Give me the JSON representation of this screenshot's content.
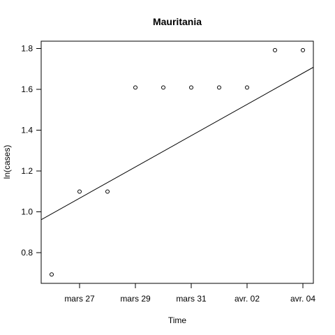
{
  "chart_data": {
    "type": "scatter",
    "title": "Mauritania",
    "xlabel": "Time",
    "ylabel": "ln(cases)",
    "x_ticks": [
      "mars 27",
      "mars 29",
      "mars 31",
      "avr. 02",
      "avr. 04"
    ],
    "x_tick_dates": [
      "2020-03-27",
      "2020-03-29",
      "2020-03-31",
      "2020-04-02",
      "2020-04-04"
    ],
    "y_ticks": [
      0.8,
      1.0,
      1.2,
      1.4,
      1.6,
      1.8
    ],
    "xlim": [
      "2020-03-25",
      "2020-04-04"
    ],
    "ylim": [
      0.65,
      1.84
    ],
    "points": [
      {
        "x": "2020-03-26",
        "y": 0.693
      },
      {
        "x": "2020-03-27",
        "y": 1.099
      },
      {
        "x": "2020-03-28",
        "y": 1.099
      },
      {
        "x": "2020-03-29",
        "y": 1.609
      },
      {
        "x": "2020-03-30",
        "y": 1.609
      },
      {
        "x": "2020-03-31",
        "y": 1.609
      },
      {
        "x": "2020-04-01",
        "y": 1.609
      },
      {
        "x": "2020-04-02",
        "y": 1.609
      },
      {
        "x": "2020-04-03",
        "y": 1.792
      },
      {
        "x": "2020-04-04",
        "y": 1.792
      }
    ],
    "fit_line": {
      "intercept_date": "2020-03-26",
      "intercept_y": 0.99,
      "slope_per_day": 0.0766
    },
    "grid": false,
    "legend": "none"
  }
}
